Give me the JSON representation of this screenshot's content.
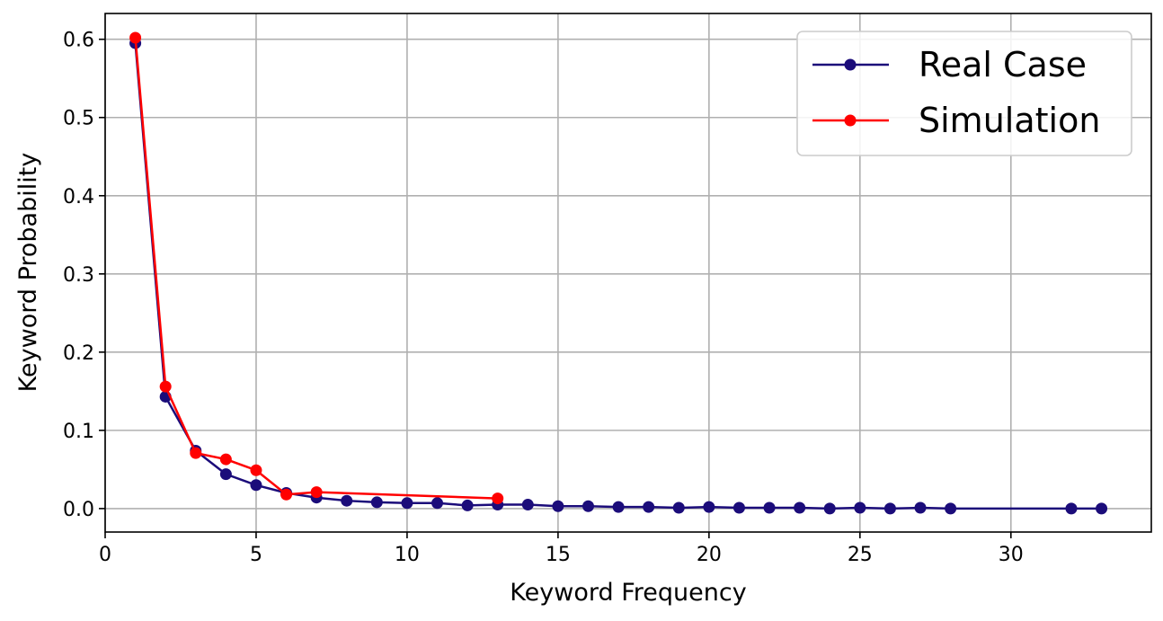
{
  "chart_data": {
    "type": "line",
    "xlabel": "Keyword Frequency",
    "ylabel": "Keyword Probability",
    "xlim": [
      0,
      34.65
    ],
    "ylim": [
      -0.03,
      0.633
    ],
    "xticks": [
      0,
      5,
      10,
      15,
      20,
      25,
      30
    ],
    "yticks": [
      {
        "value": 0,
        "label": "0.0"
      },
      0.1,
      0.2,
      0.3,
      0.4,
      0.5,
      0.6
    ],
    "grid": true,
    "legend": "upper right",
    "series": [
      {
        "name": "Real Case",
        "color": "#1b0c7a",
        "x": [
          1,
          2,
          3,
          4,
          5,
          6,
          7,
          8,
          9,
          10,
          11,
          12,
          13,
          14,
          15,
          16,
          17,
          18,
          19,
          20,
          21,
          22,
          23,
          24,
          25,
          26,
          27,
          28,
          32,
          33
        ],
        "values": [
          0.595,
          0.143,
          0.074,
          0.044,
          0.03,
          0.02,
          0.014,
          0.01,
          0.008,
          0.007,
          0.007,
          0.004,
          0.005,
          0.005,
          0.003,
          0.003,
          0.002,
          0.002,
          0.001,
          0.002,
          0.001,
          0.001,
          0.001,
          0.0,
          0.001,
          0.0,
          0.001,
          0.0,
          0.0,
          0.0
        ]
      },
      {
        "name": "Simulation",
        "color": "#ff0000",
        "x": [
          1,
          2,
          3,
          4,
          5,
          6,
          7,
          13
        ],
        "values": [
          0.602,
          0.156,
          0.071,
          0.063,
          0.049,
          0.018,
          0.021,
          0.013
        ]
      }
    ]
  }
}
